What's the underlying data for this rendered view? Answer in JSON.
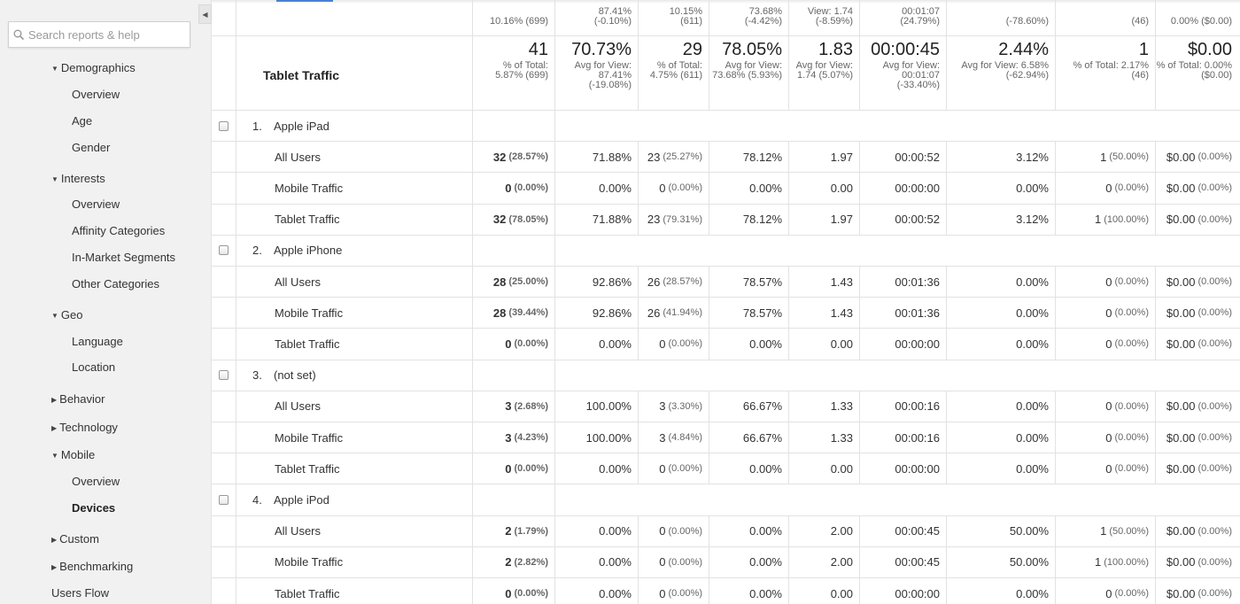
{
  "sidebar": {
    "search_placeholder": "Search reports & help",
    "collapse_icon": "triangle-left-icon",
    "items": {
      "demographics": "Demographics",
      "demo_overview": "Overview",
      "age": "Age",
      "gender": "Gender",
      "interests": "Interests",
      "int_overview": "Overview",
      "affinity": "Affinity Categories",
      "inmarket": "In-Market Segments",
      "other": "Other Categories",
      "geo": "Geo",
      "language": "Language",
      "location": "Location",
      "behavior": "Behavior",
      "technology": "Technology",
      "mobile": "Mobile",
      "mob_overview": "Overview",
      "devices": "Devices",
      "custom": "Custom",
      "benchmarking": "Benchmarking",
      "users_flow": "Users Flow"
    }
  },
  "top_partial": [
    [
      "10.16% (699)"
    ],
    [
      "87.41%",
      "(-0.10%)"
    ],
    [
      "10.15%",
      "(611)"
    ],
    [
      "73.68%",
      "(-4.42%)"
    ],
    [
      "View: 1.74",
      "(-8.59%)"
    ],
    [
      "00:01:07",
      "(24.79%)"
    ],
    [
      "(-78.60%)"
    ],
    [
      "(46)"
    ],
    [
      "0.00% ($0.00)"
    ]
  ],
  "summary": {
    "label": "Tablet Traffic",
    "cells": [
      {
        "big": "41",
        "small": "% of Total: 5.87% (699)"
      },
      {
        "big": "70.73%",
        "small": "Avg for View: 87.41% (-19.08%)"
      },
      {
        "big": "29",
        "small": "% of Total: 4.75% (611)"
      },
      {
        "big": "78.05%",
        "small": "Avg for View: 73.68% (5.93%)"
      },
      {
        "big": "1.83",
        "small": "Avg for View: 1.74 (5.07%)"
      },
      {
        "big": "00:00:45",
        "small": "Avg for View: 00:01:07 (-33.40%)"
      },
      {
        "big": "2.44%",
        "small": "Avg for View: 6.58% (-62.94%)"
      },
      {
        "big": "1",
        "small": "% of Total: 2.17% (46)"
      },
      {
        "big": "$0.00",
        "small": "% of Total: 0.00% ($0.00)"
      }
    ]
  },
  "groups": [
    {
      "index": "1.",
      "name": "Apple iPad",
      "rows": [
        {
          "segment": "All Users",
          "users": "32",
          "users_pct": "(28.57%)",
          "bounce": "71.88%",
          "new": "23",
          "new_pct": "(25.27%)",
          "pct_new": "78.12%",
          "pages": "1.97",
          "dur": "00:00:52",
          "conv": "3.12%",
          "goal": "1",
          "goal_pct": "(50.00%)",
          "rev": "$0.00",
          "rev_pct": "(0.00%)"
        },
        {
          "segment": "Mobile Traffic",
          "users": "0",
          "users_pct": "(0.00%)",
          "bounce": "0.00%",
          "new": "0",
          "new_pct": "(0.00%)",
          "pct_new": "0.00%",
          "pages": "0.00",
          "dur": "00:00:00",
          "conv": "0.00%",
          "goal": "0",
          "goal_pct": "(0.00%)",
          "rev": "$0.00",
          "rev_pct": "(0.00%)"
        },
        {
          "segment": "Tablet Traffic",
          "users": "32",
          "users_pct": "(78.05%)",
          "bounce": "71.88%",
          "new": "23",
          "new_pct": "(79.31%)",
          "pct_new": "78.12%",
          "pages": "1.97",
          "dur": "00:00:52",
          "conv": "3.12%",
          "goal": "1",
          "goal_pct": "(100.00%)",
          "rev": "$0.00",
          "rev_pct": "(0.00%)"
        }
      ]
    },
    {
      "index": "2.",
      "name": "Apple iPhone",
      "rows": [
        {
          "segment": "All Users",
          "users": "28",
          "users_pct": "(25.00%)",
          "bounce": "92.86%",
          "new": "26",
          "new_pct": "(28.57%)",
          "pct_new": "78.57%",
          "pages": "1.43",
          "dur": "00:01:36",
          "conv": "0.00%",
          "goal": "0",
          "goal_pct": "(0.00%)",
          "rev": "$0.00",
          "rev_pct": "(0.00%)"
        },
        {
          "segment": "Mobile Traffic",
          "users": "28",
          "users_pct": "(39.44%)",
          "bounce": "92.86%",
          "new": "26",
          "new_pct": "(41.94%)",
          "pct_new": "78.57%",
          "pages": "1.43",
          "dur": "00:01:36",
          "conv": "0.00%",
          "goal": "0",
          "goal_pct": "(0.00%)",
          "rev": "$0.00",
          "rev_pct": "(0.00%)"
        },
        {
          "segment": "Tablet Traffic",
          "users": "0",
          "users_pct": "(0.00%)",
          "bounce": "0.00%",
          "new": "0",
          "new_pct": "(0.00%)",
          "pct_new": "0.00%",
          "pages": "0.00",
          "dur": "00:00:00",
          "conv": "0.00%",
          "goal": "0",
          "goal_pct": "(0.00%)",
          "rev": "$0.00",
          "rev_pct": "(0.00%)"
        }
      ]
    },
    {
      "index": "3.",
      "name": "(not set)",
      "rows": [
        {
          "segment": "All Users",
          "users": "3",
          "users_pct": "(2.68%)",
          "bounce": "100.00%",
          "new": "3",
          "new_pct": "(3.30%)",
          "pct_new": "66.67%",
          "pages": "1.33",
          "dur": "00:00:16",
          "conv": "0.00%",
          "goal": "0",
          "goal_pct": "(0.00%)",
          "rev": "$0.00",
          "rev_pct": "(0.00%)"
        },
        {
          "segment": "Mobile Traffic",
          "users": "3",
          "users_pct": "(4.23%)",
          "bounce": "100.00%",
          "new": "3",
          "new_pct": "(4.84%)",
          "pct_new": "66.67%",
          "pages": "1.33",
          "dur": "00:00:16",
          "conv": "0.00%",
          "goal": "0",
          "goal_pct": "(0.00%)",
          "rev": "$0.00",
          "rev_pct": "(0.00%)"
        },
        {
          "segment": "Tablet Traffic",
          "users": "0",
          "users_pct": "(0.00%)",
          "bounce": "0.00%",
          "new": "0",
          "new_pct": "(0.00%)",
          "pct_new": "0.00%",
          "pages": "0.00",
          "dur": "00:00:00",
          "conv": "0.00%",
          "goal": "0",
          "goal_pct": "(0.00%)",
          "rev": "$0.00",
          "rev_pct": "(0.00%)"
        }
      ]
    },
    {
      "index": "4.",
      "name": "Apple iPod",
      "rows": [
        {
          "segment": "All Users",
          "users": "2",
          "users_pct": "(1.79%)",
          "bounce": "0.00%",
          "new": "0",
          "new_pct": "(0.00%)",
          "pct_new": "0.00%",
          "pages": "2.00",
          "dur": "00:00:45",
          "conv": "50.00%",
          "goal": "1",
          "goal_pct": "(50.00%)",
          "rev": "$0.00",
          "rev_pct": "(0.00%)"
        },
        {
          "segment": "Mobile Traffic",
          "users": "2",
          "users_pct": "(2.82%)",
          "bounce": "0.00%",
          "new": "0",
          "new_pct": "(0.00%)",
          "pct_new": "0.00%",
          "pages": "2.00",
          "dur": "00:00:45",
          "conv": "50.00%",
          "goal": "1",
          "goal_pct": "(100.00%)",
          "rev": "$0.00",
          "rev_pct": "(0.00%)"
        },
        {
          "segment": "Tablet Traffic",
          "users": "0",
          "users_pct": "(0.00%)",
          "bounce": "0.00%",
          "new": "0",
          "new_pct": "(0.00%)",
          "pct_new": "0.00%",
          "pages": "0.00",
          "dur": "00:00:00",
          "conv": "0.00%",
          "goal": "0",
          "goal_pct": "(0.00%)",
          "rev": "$0.00",
          "rev_pct": "(0.00%)"
        }
      ]
    }
  ]
}
